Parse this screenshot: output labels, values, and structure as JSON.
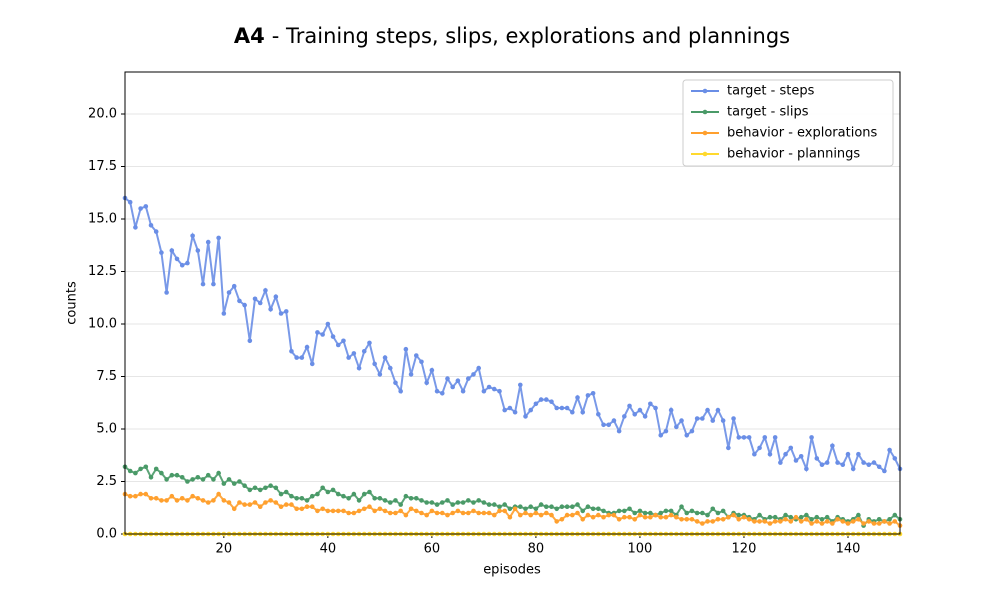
{
  "chart_data": {
    "type": "line",
    "title": {
      "bold": "A4",
      "text": "- Training steps, slips, explorations and plannings"
    },
    "xlabel": "episodes",
    "ylabel": "counts",
    "x": [
      1,
      2,
      3,
      4,
      5,
      6,
      7,
      8,
      9,
      10,
      11,
      12,
      13,
      14,
      15,
      16,
      17,
      18,
      19,
      20,
      21,
      22,
      23,
      24,
      25,
      26,
      27,
      28,
      29,
      30,
      31,
      32,
      33,
      34,
      35,
      36,
      37,
      38,
      39,
      40,
      41,
      42,
      43,
      44,
      45,
      46,
      47,
      48,
      49,
      50,
      51,
      52,
      53,
      54,
      55,
      56,
      57,
      58,
      59,
      60,
      61,
      62,
      63,
      64,
      65,
      66,
      67,
      68,
      69,
      70,
      71,
      72,
      73,
      74,
      75,
      76,
      77,
      78,
      79,
      80,
      81,
      82,
      83,
      84,
      85,
      86,
      87,
      88,
      89,
      90,
      91,
      92,
      93,
      94,
      95,
      96,
      97,
      98,
      99,
      100,
      101,
      102,
      103,
      104,
      105,
      106,
      107,
      108,
      109,
      110,
      111,
      112,
      113,
      114,
      115,
      116,
      117,
      118,
      119,
      120,
      121,
      122,
      123,
      124,
      125,
      126,
      127,
      128,
      129,
      130,
      131,
      132,
      133,
      134,
      135,
      136,
      137,
      138,
      139,
      140,
      141,
      142,
      143,
      144,
      145,
      146,
      147,
      148,
      149,
      150
    ],
    "series": [
      {
        "name": "target - steps",
        "color": "#6a8ee6",
        "values": [
          16.0,
          15.8,
          14.6,
          15.5,
          15.6,
          14.7,
          14.4,
          13.4,
          11.5,
          13.5,
          13.1,
          12.8,
          12.9,
          14.2,
          13.5,
          11.9,
          13.9,
          11.9,
          14.1,
          10.5,
          11.5,
          11.8,
          11.1,
          10.9,
          9.2,
          11.2,
          11.0,
          11.6,
          10.7,
          11.3,
          10.5,
          10.6,
          8.7,
          8.4,
          8.4,
          8.9,
          8.1,
          9.6,
          9.5,
          10.0,
          9.4,
          9.0,
          9.2,
          8.4,
          8.6,
          7.9,
          8.7,
          9.1,
          8.1,
          7.6,
          8.4,
          7.9,
          7.2,
          6.8,
          8.8,
          7.6,
          8.5,
          8.2,
          7.2,
          7.8,
          6.8,
          6.7,
          7.4,
          7.0,
          7.3,
          6.8,
          7.4,
          7.6,
          7.9,
          6.8,
          7.0,
          6.9,
          6.8,
          5.9,
          6.0,
          5.8,
          7.1,
          5.6,
          5.9,
          6.2,
          6.4,
          6.4,
          6.3,
          6.0,
          6.0,
          6.0,
          5.8,
          6.5,
          5.8,
          6.6,
          6.7,
          5.7,
          5.2,
          5.2,
          5.4,
          4.9,
          5.6,
          6.1,
          5.7,
          5.9,
          5.6,
          6.2,
          6.0,
          4.7,
          4.9,
          5.9,
          5.1,
          5.4,
          4.7,
          4.9,
          5.5,
          5.5,
          5.9,
          5.4,
          5.9,
          5.4,
          4.1,
          5.5,
          4.6,
          4.6,
          4.6,
          3.8,
          4.1,
          4.6,
          3.8,
          4.6,
          3.4,
          3.8,
          4.1,
          3.5,
          3.7,
          3.1,
          4.6,
          3.6,
          3.3,
          3.4,
          4.2,
          3.4,
          3.3,
          3.8,
          3.1,
          3.8,
          3.4,
          3.3,
          3.4,
          3.2,
          3.0,
          4.0,
          3.6,
          3.1
        ]
      },
      {
        "name": "target - slips",
        "color": "#4a9a68",
        "values": [
          3.2,
          3.0,
          2.9,
          3.1,
          3.2,
          2.7,
          3.1,
          2.9,
          2.6,
          2.8,
          2.8,
          2.7,
          2.5,
          2.6,
          2.7,
          2.6,
          2.8,
          2.6,
          2.9,
          2.4,
          2.6,
          2.4,
          2.5,
          2.3,
          2.1,
          2.2,
          2.1,
          2.2,
          2.3,
          2.2,
          1.9,
          2.0,
          1.8,
          1.7,
          1.7,
          1.6,
          1.8,
          1.9,
          2.2,
          2.0,
          2.1,
          1.9,
          1.8,
          1.7,
          1.9,
          1.6,
          1.9,
          2.0,
          1.7,
          1.7,
          1.6,
          1.5,
          1.6,
          1.4,
          1.8,
          1.7,
          1.7,
          1.6,
          1.5,
          1.5,
          1.4,
          1.5,
          1.6,
          1.4,
          1.5,
          1.5,
          1.6,
          1.5,
          1.6,
          1.5,
          1.4,
          1.4,
          1.3,
          1.4,
          1.2,
          1.3,
          1.3,
          1.2,
          1.3,
          1.2,
          1.4,
          1.3,
          1.3,
          1.2,
          1.3,
          1.3,
          1.3,
          1.4,
          1.1,
          1.3,
          1.2,
          1.2,
          1.1,
          1.0,
          1.0,
          1.1,
          1.1,
          1.2,
          1.0,
          1.1,
          1.0,
          1.0,
          0.9,
          1.0,
          1.1,
          1.1,
          0.9,
          1.3,
          1.0,
          1.1,
          1.0,
          1.0,
          0.9,
          1.2,
          1.0,
          1.1,
          0.8,
          1.0,
          0.9,
          0.9,
          0.8,
          0.7,
          0.9,
          0.7,
          0.8,
          0.8,
          0.7,
          0.9,
          0.8,
          0.7,
          0.8,
          0.9,
          0.7,
          0.8,
          0.7,
          0.8,
          0.6,
          0.8,
          0.7,
          0.6,
          0.7,
          0.9,
          0.4,
          0.7,
          0.6,
          0.7,
          0.6,
          0.7,
          0.9,
          0.7
        ]
      },
      {
        "name": "behavior - explorations",
        "color": "#ffa02e",
        "values": [
          1.9,
          1.8,
          1.8,
          1.9,
          1.9,
          1.7,
          1.7,
          1.6,
          1.6,
          1.8,
          1.6,
          1.7,
          1.6,
          1.8,
          1.7,
          1.6,
          1.5,
          1.6,
          1.9,
          1.6,
          1.5,
          1.2,
          1.5,
          1.4,
          1.4,
          1.5,
          1.3,
          1.5,
          1.6,
          1.5,
          1.3,
          1.4,
          1.4,
          1.2,
          1.2,
          1.3,
          1.3,
          1.1,
          1.2,
          1.1,
          1.1,
          1.1,
          1.1,
          1.0,
          1.0,
          1.1,
          1.2,
          1.3,
          1.1,
          1.2,
          1.1,
          1.0,
          1.0,
          1.1,
          0.9,
          1.2,
          1.1,
          1.0,
          0.9,
          1.1,
          1.0,
          1.0,
          0.9,
          1.0,
          1.1,
          1.0,
          1.0,
          1.1,
          1.0,
          1.0,
          1.0,
          0.9,
          1.1,
          1.1,
          0.8,
          1.2,
          0.9,
          1.0,
          0.9,
          1.0,
          0.9,
          1.0,
          0.9,
          0.6,
          0.7,
          0.9,
          0.9,
          1.0,
          0.7,
          0.9,
          0.8,
          0.9,
          0.8,
          0.9,
          0.9,
          0.7,
          0.8,
          0.8,
          0.7,
          0.9,
          0.8,
          0.8,
          0.9,
          0.8,
          0.8,
          0.9,
          0.8,
          0.7,
          0.7,
          0.7,
          0.6,
          0.5,
          0.6,
          0.6,
          0.7,
          0.7,
          0.8,
          0.9,
          0.7,
          0.8,
          0.7,
          0.6,
          0.6,
          0.6,
          0.5,
          0.6,
          0.6,
          0.7,
          0.6,
          0.8,
          0.6,
          0.7,
          0.5,
          0.6,
          0.5,
          0.6,
          0.5,
          0.7,
          0.6,
          0.5,
          0.6,
          0.7,
          0.5,
          0.6,
          0.5,
          0.5,
          0.6,
          0.5,
          0.6,
          0.4
        ]
      },
      {
        "name": "behavior - plannings",
        "color": "#ffd92e",
        "values": [
          0,
          0,
          0,
          0,
          0,
          0,
          0,
          0,
          0,
          0,
          0,
          0,
          0,
          0,
          0,
          0,
          0,
          0,
          0,
          0,
          0,
          0,
          0,
          0,
          0,
          0,
          0,
          0,
          0,
          0,
          0,
          0,
          0,
          0,
          0,
          0,
          0,
          0,
          0,
          0,
          0,
          0,
          0,
          0,
          0,
          0,
          0,
          0,
          0,
          0,
          0,
          0,
          0,
          0,
          0,
          0,
          0,
          0,
          0,
          0,
          0,
          0,
          0,
          0,
          0,
          0,
          0,
          0,
          0,
          0,
          0,
          0,
          0,
          0,
          0,
          0,
          0,
          0,
          0,
          0,
          0,
          0,
          0,
          0,
          0,
          0,
          0,
          0,
          0,
          0,
          0,
          0,
          0,
          0,
          0,
          0,
          0,
          0,
          0,
          0,
          0,
          0,
          0,
          0,
          0,
          0,
          0,
          0,
          0,
          0,
          0,
          0,
          0,
          0,
          0,
          0,
          0,
          0,
          0,
          0,
          0,
          0,
          0,
          0,
          0,
          0,
          0,
          0,
          0,
          0,
          0,
          0,
          0,
          0,
          0,
          0,
          0,
          0,
          0,
          0,
          0,
          0,
          0,
          0,
          0,
          0,
          0,
          0,
          0,
          0
        ]
      }
    ],
    "xlim": [
      1,
      150
    ],
    "xticks": [
      20,
      40,
      60,
      80,
      100,
      120,
      140
    ],
    "ylim": [
      0,
      22
    ],
    "yticks": [
      {
        "value": 0,
        "label": "0.0"
      },
      {
        "value": 2.5,
        "label": "2.5"
      },
      {
        "value": 5,
        "label": "5.0"
      },
      {
        "value": 7.5,
        "label": "7.5"
      },
      {
        "value": 10,
        "label": "10.0"
      },
      {
        "value": 12.5,
        "label": "12.5"
      },
      {
        "value": 15,
        "label": "15.0"
      },
      {
        "value": 17.5,
        "label": "17.5"
      },
      {
        "value": 20,
        "label": "20.0"
      }
    ],
    "grid": "y",
    "legend": "upper right"
  }
}
